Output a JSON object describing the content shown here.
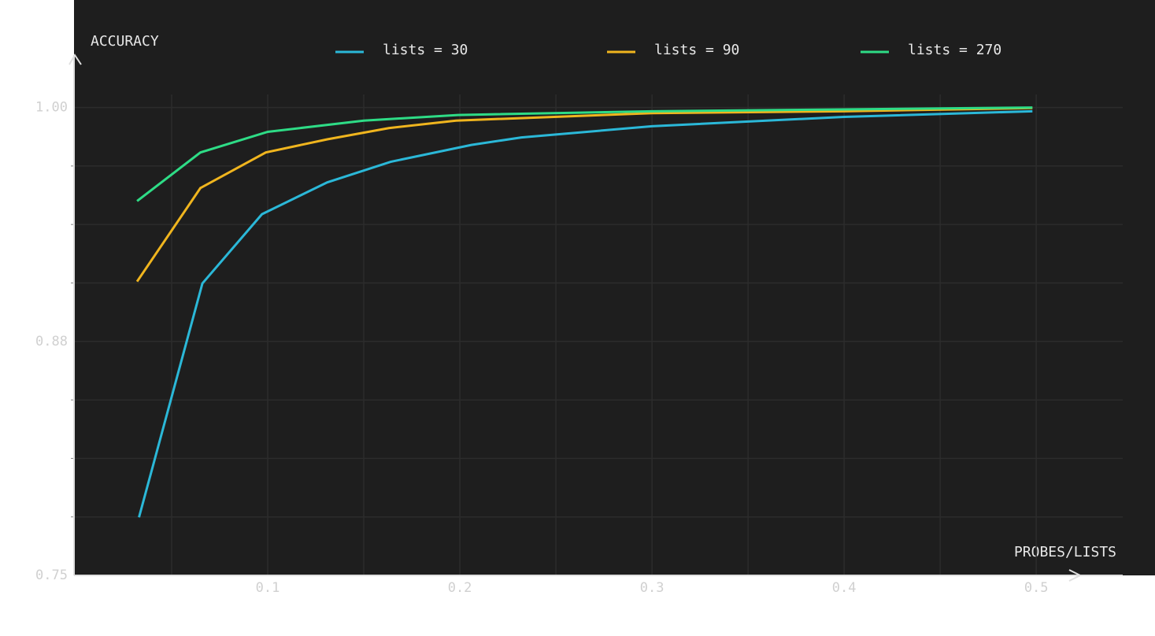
{
  "chart_data": {
    "type": "line",
    "y_label": "ACCURACY",
    "x_label": "PROBES/LISTS",
    "xlim": [
      0,
      0.545
    ],
    "ylim": [
      0.75,
      1.028
    ],
    "xticks": [
      0.1,
      0.2,
      0.3,
      0.4,
      0.5
    ],
    "yticks": [
      0.75,
      {
        "value": 0.875,
        "label": "0.88"
      },
      {
        "value": 1.0,
        "label": "1.00"
      }
    ],
    "grid": true,
    "series": [
      {
        "name": "lists = 30",
        "color": "#2bb8d8",
        "x": [
          0.033,
          0.066,
          0.097,
          0.131,
          0.164,
          0.206,
          0.232,
          0.3,
          0.4,
          0.498
        ],
        "values": [
          0.781,
          0.906,
          0.943,
          0.96,
          0.971,
          0.98,
          0.984,
          0.99,
          0.995,
          0.998
        ]
      },
      {
        "name": "lists = 90",
        "color": "#f0b51e",
        "x": [
          0.032,
          0.065,
          0.099,
          0.131,
          0.163,
          0.198,
          0.3,
          0.4,
          0.498
        ],
        "values": [
          0.907,
          0.957,
          0.976,
          0.983,
          0.989,
          0.993,
          0.997,
          0.998,
          0.9997
        ]
      },
      {
        "name": "lists = 270",
        "color": "#2edc86",
        "x": [
          0.032,
          0.065,
          0.1,
          0.15,
          0.199,
          0.3,
          0.4,
          0.498
        ],
        "values": [
          0.95,
          0.976,
          0.987,
          0.993,
          0.996,
          0.998,
          0.999,
          1.0
        ]
      }
    ]
  }
}
